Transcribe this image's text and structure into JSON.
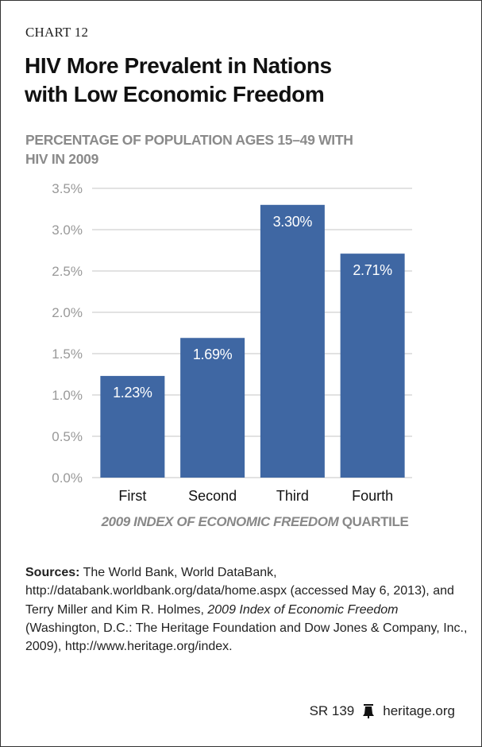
{
  "chart_number": "CHART 12",
  "title_line1": "HIV More Prevalent in Nations",
  "title_line2": "with Low Economic Freedom",
  "subtitle_line1": "PERCENTAGE OF POPULATION AGES 15–49 WITH",
  "subtitle_line2": "HIV IN 2009",
  "chart_data": {
    "type": "bar",
    "title": "HIV More Prevalent in Nations with Low Economic Freedom",
    "ylabel": "PERCENTAGE OF POPULATION AGES 15–49 WITH HIV IN 2009",
    "xlabel_italic": "2009 INDEX OF ECONOMIC FREEDOM",
    "xlabel_rest": " QUARTILE",
    "categories": [
      "First",
      "Second",
      "Third",
      "Fourth"
    ],
    "values": [
      1.23,
      1.69,
      3.3,
      2.71
    ],
    "value_labels": [
      "1.23%",
      "1.69%",
      "3.30%",
      "2.71%"
    ],
    "ylim": [
      0,
      3.5
    ],
    "yticks": [
      0,
      0.5,
      1.0,
      1.5,
      2.0,
      2.5,
      3.0,
      3.5
    ],
    "ytick_labels": [
      "0.0%",
      "0.5%",
      "1.0%",
      "1.5%",
      "2.0%",
      "2.5%",
      "3.0%",
      "3.5%"
    ],
    "grid": true,
    "bar_color": "#3f67a3",
    "grid_color": "#d9d9d9"
  },
  "sources": {
    "label": "Sources:",
    "text1": " The World Bank, World DataBank, http://databank.worldbank.org/data/home.aspx (accessed May 6, 2013), and Terry Miller and Kim R. Holmes, ",
    "italic1": "2009 Index of Economic Freedom",
    "text2": " (Washington, D.C.: The Heritage Foundation and Dow Jones & Company, Inc., 2009), http://www.heritage.org/index."
  },
  "footer": {
    "report": "SR 139",
    "site": "heritage.org"
  }
}
